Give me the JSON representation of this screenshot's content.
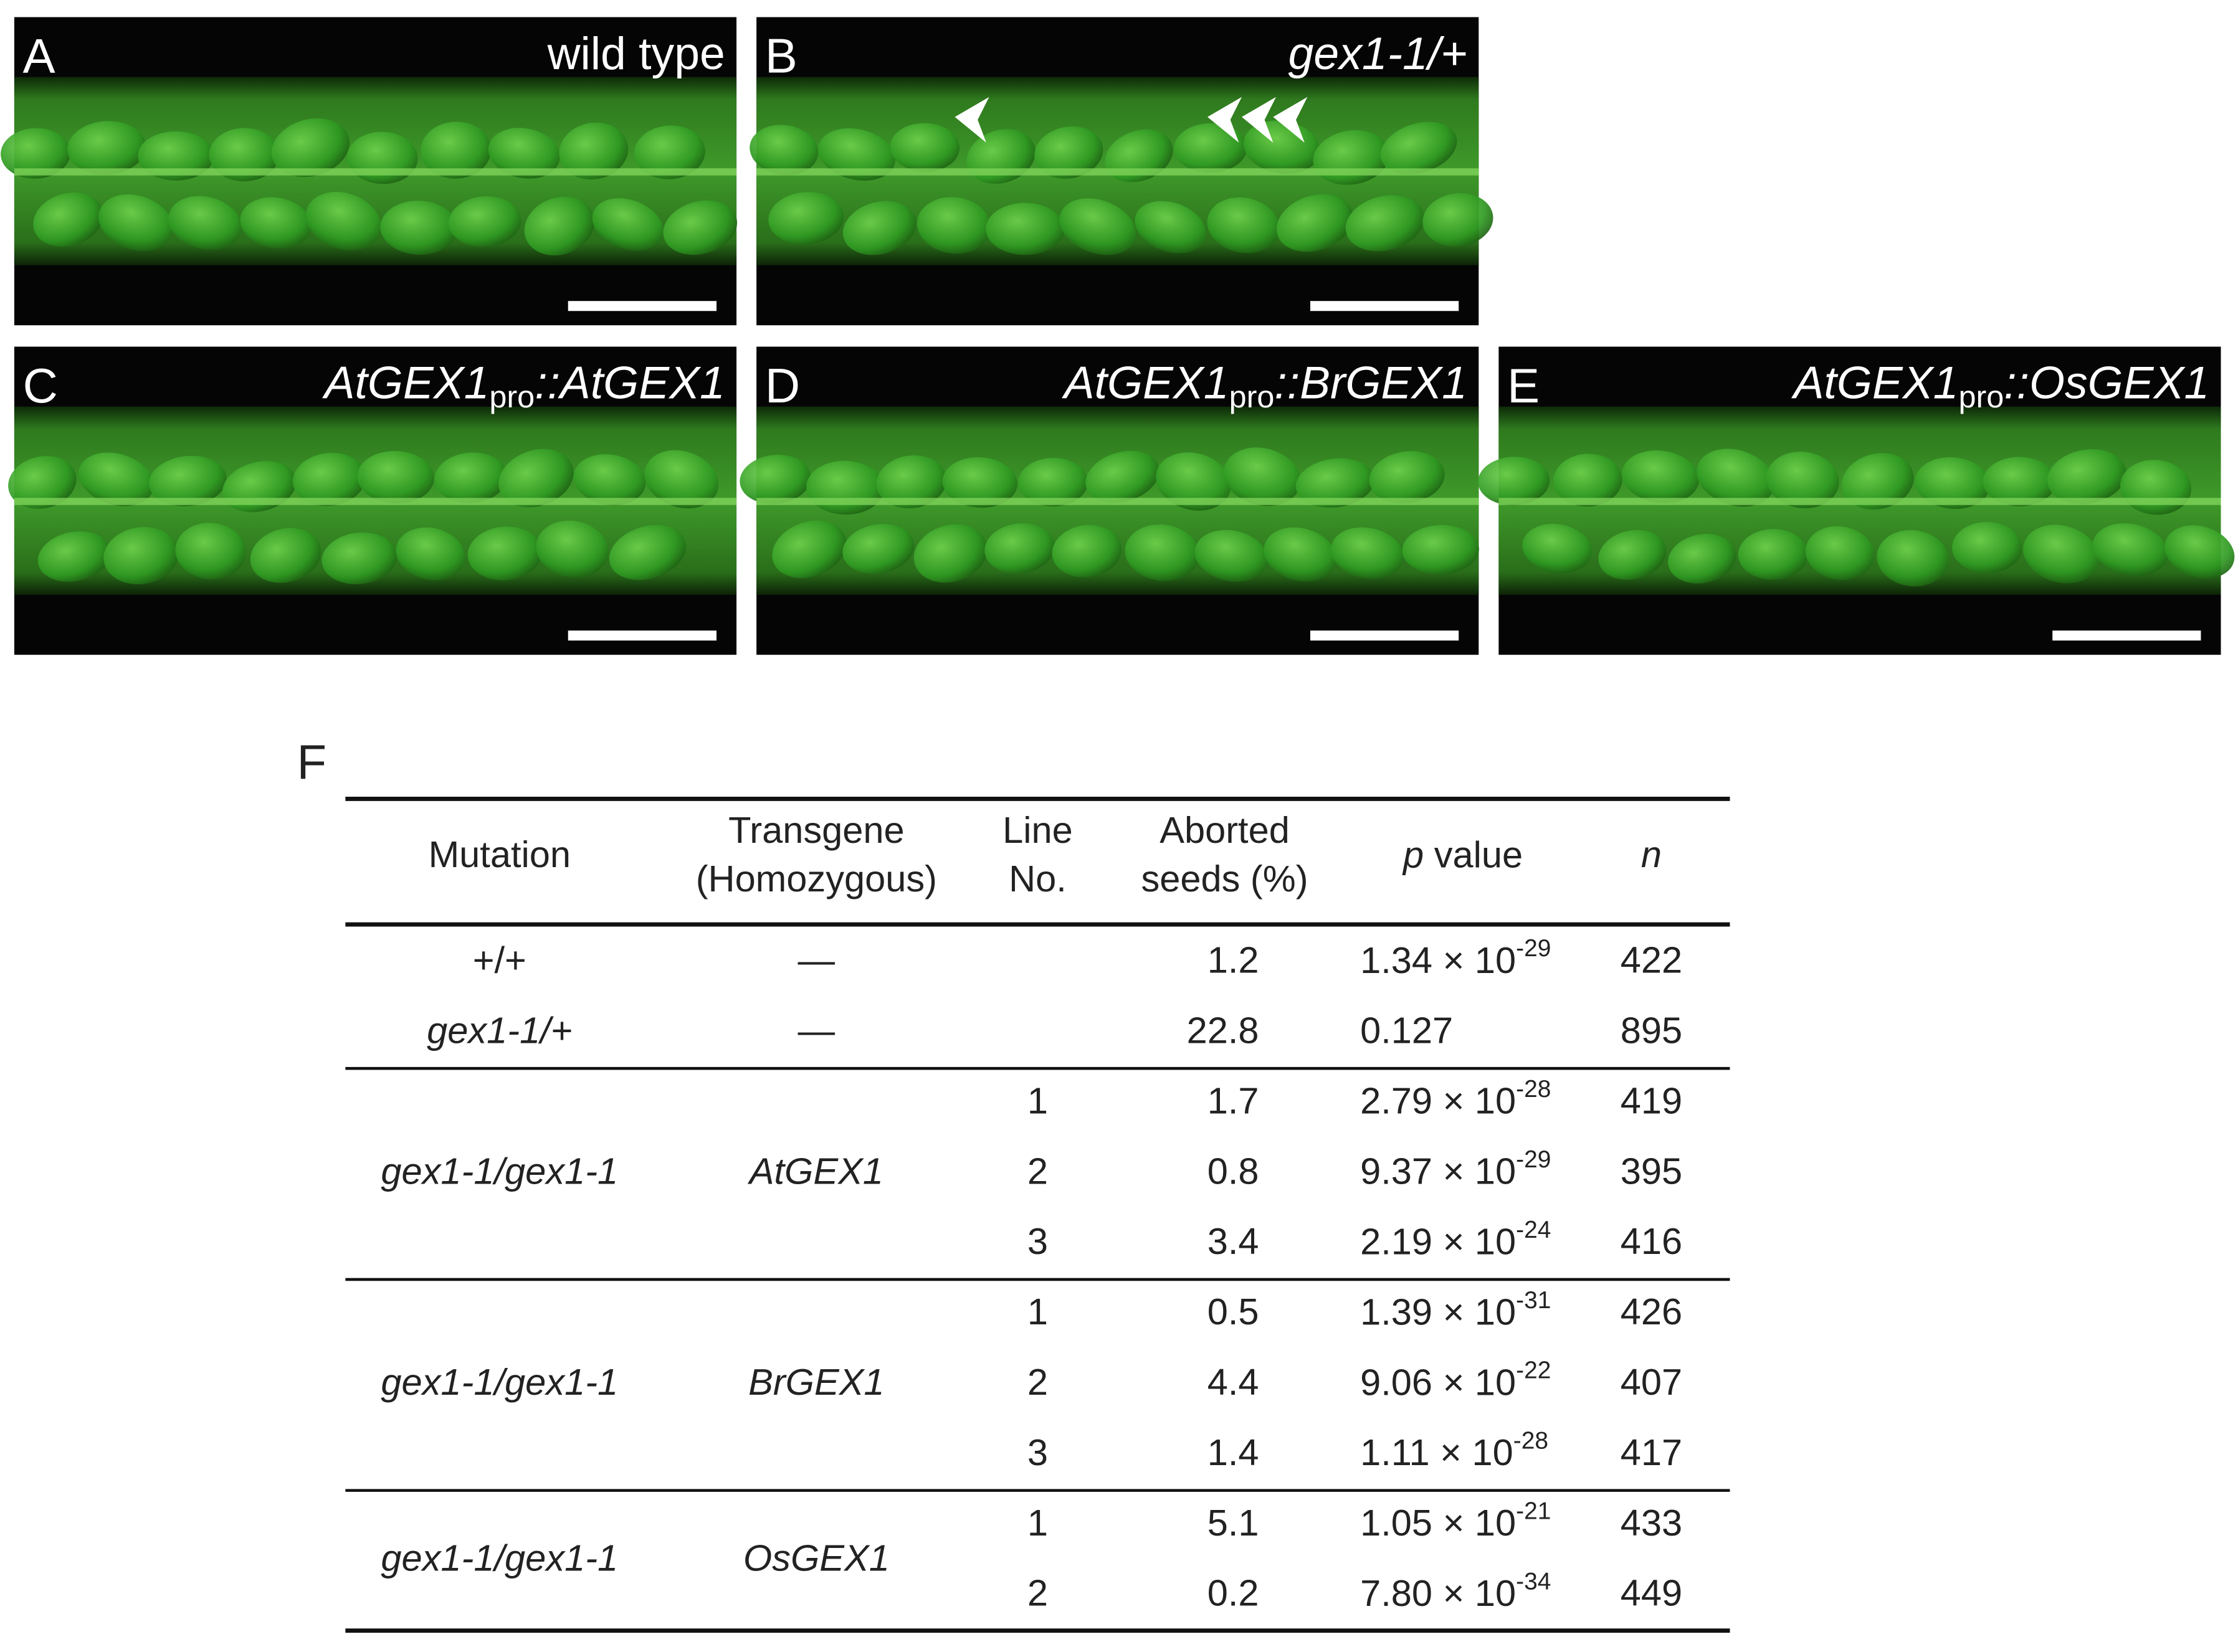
{
  "panels": [
    {
      "letter": "A",
      "label": "wild type"
    },
    {
      "letter": "B",
      "label": "gex1-1/+"
    },
    {
      "letter": "C",
      "label": {
        "main": "AtGEX1",
        "sub": "pro",
        "rest": "::AtGEX1"
      }
    },
    {
      "letter": "D",
      "label": {
        "main": "AtGEX1",
        "sub": "pro",
        "rest": "::BrGEX1"
      }
    },
    {
      "letter": "E",
      "label": {
        "main": "AtGEX1",
        "sub": "pro",
        "rest": "::OsGEX1"
      }
    }
  ],
  "table": {
    "letter": "F",
    "headers": {
      "mutation": [
        "Mutation"
      ],
      "transgene": [
        "Transgene",
        "(Homozygous)"
      ],
      "line": [
        "Line",
        "No."
      ],
      "aborted": [
        "Aborted",
        "seeds (%)"
      ],
      "p": [
        "p",
        " value"
      ],
      "n": [
        "n"
      ]
    },
    "groups": [
      {
        "mutation": "+/+",
        "transgene": "—",
        "rows": [
          {
            "aborted": 1.2,
            "p": {
              "base": "1.34 × 10",
              "exp": "-29"
            },
            "n": 422
          }
        ]
      },
      {
        "mutation": "gex1-1/+",
        "transgene": "—",
        "rows": [
          {
            "aborted": 22.8,
            "p": {
              "base": "0.127"
            },
            "n": 895
          }
        ]
      },
      {
        "mutation": "gex1-1/gex1-1",
        "transgene": "AtGEX1",
        "rows": [
          {
            "line": 1,
            "aborted": 1.7,
            "p": {
              "base": "2.79 × 10",
              "exp": "-28"
            },
            "n": 419
          },
          {
            "line": 2,
            "aborted": 0.8,
            "p": {
              "base": "9.37 × 10",
              "exp": "-29"
            },
            "n": 395
          },
          {
            "line": 3,
            "aborted": 3.4,
            "p": {
              "base": "2.19 × 10",
              "exp": "-24"
            },
            "n": 416
          }
        ]
      },
      {
        "mutation": "gex1-1/gex1-1",
        "transgene": "BrGEX1",
        "rows": [
          {
            "line": 1,
            "aborted": 0.5,
            "p": {
              "base": "1.39 × 10",
              "exp": "-31"
            },
            "n": 426
          },
          {
            "line": 2,
            "aborted": 4.4,
            "p": {
              "base": "9.06 × 10",
              "exp": "-22"
            },
            "n": 407
          },
          {
            "line": 3,
            "aborted": 1.4,
            "p": {
              "base": "1.11 × 10",
              "exp": "-28"
            },
            "n": 417
          }
        ]
      },
      {
        "mutation": "gex1-1/gex1-1",
        "transgene": "OsGEX1",
        "rows": [
          {
            "line": 1,
            "aborted": 5.1,
            "p": {
              "base": "1.05 × 10",
              "exp": "-21"
            },
            "n": 433
          },
          {
            "line": 2,
            "aborted": 0.2,
            "p": {
              "base": "7.80 × 10",
              "exp": "-34"
            },
            "n": 449
          }
        ]
      }
    ]
  }
}
